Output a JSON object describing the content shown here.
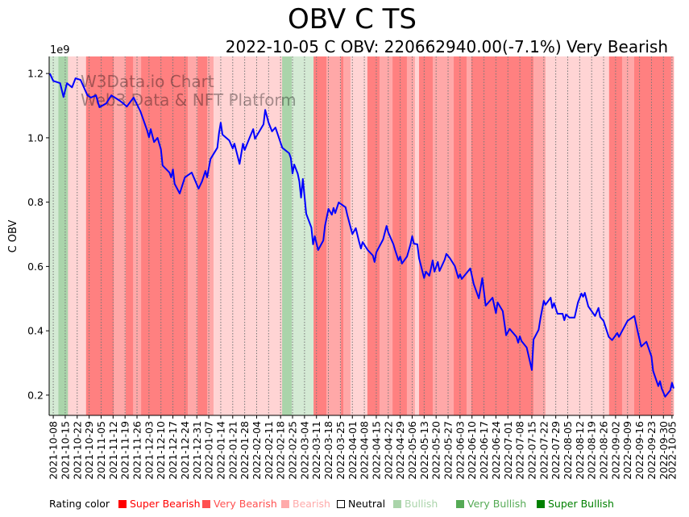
{
  "header": {
    "title": "OBV C TS",
    "subtitle": "2022-10-05 C OBV: 220662940.00(-7.1%) Very Bearish"
  },
  "watermark": [
    "W3Data.io Chart",
    "Web3 Data & NFT Platform"
  ],
  "legend": {
    "label": "Rating color",
    "items": [
      {
        "name": "Super Bearish",
        "color": "#ff0000",
        "text_color": "#ff0000"
      },
      {
        "name": "Very Bearish",
        "color": "#ff5050",
        "text_color": "#ff5050"
      },
      {
        "name": "Bearish",
        "color": "#ffaaaa",
        "text_color": "#ffaaaa"
      },
      {
        "name": "Neutral",
        "color": "#ffffff",
        "text_color": "#000000"
      },
      {
        "name": "Bullish",
        "color": "#aad4aa",
        "text_color": "#aad4aa"
      },
      {
        "name": "Very Bullish",
        "color": "#55aa55",
        "text_color": "#55aa55"
      },
      {
        "name": "Super Bullish",
        "color": "#008000",
        "text_color": "#008000"
      }
    ]
  },
  "chart_data": {
    "type": "line",
    "title": "OBV C TS",
    "xlabel": "",
    "ylabel": "C OBV",
    "y_scale_label": "1e9",
    "x_start_date": "2021-10-08",
    "x_unit": "days since 2021-10-08",
    "xlim": [
      -2.4,
      363
    ],
    "ylim": [
      0.137,
      1.253
    ],
    "y_ticks": [
      0.2,
      0.4,
      0.6,
      0.8,
      1.0,
      1.2
    ],
    "y_tick_labels": [
      "0.2",
      "0.4",
      "0.6",
      "0.8",
      "1.0",
      "1.2"
    ],
    "x_ticks": [
      0,
      7,
      14,
      21,
      28,
      35,
      42,
      49,
      56,
      63,
      70,
      77,
      84,
      91,
      98,
      105,
      112,
      119,
      126,
      133,
      140,
      147,
      154,
      161,
      168,
      175,
      182,
      189,
      196,
      203,
      210,
      217,
      224,
      231,
      238,
      245,
      252,
      259,
      266,
      273,
      280,
      287,
      294,
      301,
      308,
      315,
      322,
      329,
      336,
      343,
      350,
      357,
      362
    ],
    "x_tick_labels": [
      "2021-10-08",
      "2021-10-15",
      "2021-10-22",
      "2021-10-29",
      "2021-11-05",
      "2021-11-12",
      "2021-11-19",
      "2021-11-26",
      "2021-12-03",
      "2021-12-10",
      "2021-12-17",
      "2021-12-24",
      "2021-12-31",
      "2022-01-07",
      "2022-01-14",
      "2022-01-21",
      "2022-01-28",
      "2022-02-04",
      "2022-02-11",
      "2022-02-18",
      "2022-02-25",
      "2022-03-04",
      "2022-03-11",
      "2022-03-18",
      "2022-03-25",
      "2022-04-01",
      "2022-04-08",
      "2022-04-15",
      "2022-04-22",
      "2022-04-29",
      "2022-05-06",
      "2022-05-13",
      "2022-05-20",
      "2022-05-27",
      "2022-06-03",
      "2022-06-10",
      "2022-06-17",
      "2022-06-24",
      "2022-07-01",
      "2022-07-08",
      "2022-07-15",
      "2022-07-22",
      "2022-07-29",
      "2022-08-05",
      "2022-08-12",
      "2022-08-19",
      "2022-08-26",
      "2022-09-02",
      "2022-09-09",
      "2022-09-16",
      "2022-09-23",
      "2022-09-30",
      "2022-10-05"
    ],
    "grid": "vertical dotted at x ticks",
    "line_color": "#0000ff",
    "series": [
      {
        "name": "C OBV",
        "x": [
          -2,
          0,
          4,
          6,
          8,
          11,
          13,
          16,
          20,
          22,
          25,
          27,
          31,
          34,
          39,
          41,
          43,
          47,
          51,
          55,
          56,
          57,
          59,
          61,
          63,
          64,
          68,
          69,
          70,
          71,
          74,
          77,
          81,
          85,
          87,
          89,
          90,
          92,
          96,
          97,
          98,
          99,
          103,
          105,
          106,
          109,
          111,
          112,
          115,
          117,
          118,
          123,
          124,
          126,
          128,
          130,
          134,
          138,
          139,
          140,
          141,
          143,
          144,
          145,
          146,
          148,
          151,
          152,
          153,
          155,
          158,
          159,
          161,
          163,
          164,
          165,
          167,
          171,
          172,
          174,
          175,
          177,
          179,
          180,
          181,
          184,
          187,
          188,
          189,
          193,
          195,
          196,
          199,
          200,
          202,
          203,
          204,
          207,
          209,
          210,
          211,
          213,
          214,
          217,
          218,
          220,
          221,
          222,
          223,
          225,
          226,
          229,
          230,
          232,
          235,
          237,
          238,
          239,
          242,
          244,
          246,
          249,
          251,
          253,
          257,
          259,
          260,
          263,
          265,
          267,
          271,
          272,
          273,
          274,
          277,
          280,
          281,
          284,
          285,
          287,
          288,
          291,
          292,
          293,
          295,
          298,
          299,
          300,
          302,
          305,
          307,
          309,
          310,
          311,
          313,
          317,
          319,
          320,
          322,
          325,
          327,
          330,
          331,
          334,
          336,
          340,
          342,
          344,
          347,
          350,
          351,
          354,
          355,
          356,
          358,
          361,
          362,
          363
        ],
        "y": [
          1.2,
          1.177,
          1.17,
          1.127,
          1.17,
          1.157,
          1.185,
          1.18,
          1.132,
          1.125,
          1.132,
          1.095,
          1.107,
          1.132,
          1.115,
          1.107,
          1.097,
          1.125,
          1.082,
          1.022,
          1.002,
          1.027,
          0.987,
          1.0,
          0.964,
          0.914,
          0.892,
          0.877,
          0.902,
          0.857,
          0.827,
          0.877,
          0.892,
          0.842,
          0.864,
          0.897,
          0.877,
          0.934,
          0.969,
          1.015,
          1.047,
          1.01,
          0.992,
          0.967,
          0.982,
          0.919,
          0.982,
          0.962,
          1.002,
          1.027,
          0.997,
          1.042,
          1.087,
          1.047,
          1.02,
          1.032,
          0.969,
          0.952,
          0.937,
          0.889,
          0.917,
          0.889,
          0.864,
          0.814,
          0.872,
          0.764,
          0.721,
          0.669,
          0.694,
          0.651,
          0.681,
          0.726,
          0.779,
          0.761,
          0.782,
          0.766,
          0.799,
          0.784,
          0.761,
          0.721,
          0.701,
          0.719,
          0.676,
          0.656,
          0.676,
          0.651,
          0.634,
          0.614,
          0.644,
          0.684,
          0.726,
          0.706,
          0.669,
          0.651,
          0.619,
          0.631,
          0.609,
          0.631,
          0.669,
          0.694,
          0.671,
          0.669,
          0.626,
          0.564,
          0.584,
          0.571,
          0.594,
          0.619,
          0.584,
          0.614,
          0.586,
          0.621,
          0.639,
          0.626,
          0.601,
          0.564,
          0.576,
          0.561,
          0.581,
          0.594,
          0.546,
          0.501,
          0.564,
          0.478,
          0.503,
          0.455,
          0.488,
          0.461,
          0.386,
          0.406,
          0.381,
          0.363,
          0.383,
          0.368,
          0.348,
          0.278,
          0.373,
          0.403,
          0.438,
          0.493,
          0.481,
          0.503,
          0.471,
          0.486,
          0.453,
          0.453,
          0.433,
          0.451,
          0.441,
          0.441,
          0.488,
          0.516,
          0.506,
          0.518,
          0.476,
          0.446,
          0.471,
          0.443,
          0.431,
          0.381,
          0.371,
          0.393,
          0.381,
          0.411,
          0.431,
          0.446,
          0.396,
          0.351,
          0.366,
          0.32,
          0.275,
          0.228,
          0.243,
          0.22,
          0.195,
          0.215,
          0.238,
          0.2207
        ]
      }
    ],
    "rating_bands": [
      {
        "from": -2.4,
        "to": 3,
        "rating": "Bullish"
      },
      {
        "from": 3,
        "to": 8.6,
        "rating": "Very Bullish"
      },
      {
        "from": 8.6,
        "to": 19.2,
        "rating": "Bearish"
      },
      {
        "from": 19.2,
        "to": 35.4,
        "rating": "Super Bearish"
      },
      {
        "from": 35.4,
        "to": 42.4,
        "rating": "Very Bearish"
      },
      {
        "from": 42.4,
        "to": 46.7,
        "rating": "Super Bearish"
      },
      {
        "from": 46.7,
        "to": 51.4,
        "rating": "Very Bearish"
      },
      {
        "from": 51.4,
        "to": 78.7,
        "rating": "Super Bearish"
      },
      {
        "from": 78.7,
        "to": 84.4,
        "rating": "Very Bearish"
      },
      {
        "from": 84.4,
        "to": 90,
        "rating": "Super Bearish"
      },
      {
        "from": 90,
        "to": 93.8,
        "rating": "Very Bearish"
      },
      {
        "from": 93.8,
        "to": 133.9,
        "rating": "Bearish"
      },
      {
        "from": 133.9,
        "to": 139.5,
        "rating": "Very Bullish"
      },
      {
        "from": 139.5,
        "to": 152.3,
        "rating": "Bullish"
      },
      {
        "from": 152.3,
        "to": 159.8,
        "rating": "Super Bearish"
      },
      {
        "from": 159.8,
        "to": 168.3,
        "rating": "Very Bearish"
      },
      {
        "from": 168.3,
        "to": 169.7,
        "rating": "Super Bearish"
      },
      {
        "from": 169.7,
        "to": 173.9,
        "rating": "Very Bearish"
      },
      {
        "from": 173.9,
        "to": 183.8,
        "rating": "Bearish"
      },
      {
        "from": 183.8,
        "to": 190.9,
        "rating": "Super Bearish"
      },
      {
        "from": 190.9,
        "to": 198.5,
        "rating": "Very Bearish"
      },
      {
        "from": 198.5,
        "to": 206.9,
        "rating": "Super Bearish"
      },
      {
        "from": 206.9,
        "to": 211.6,
        "rating": "Very Bearish"
      },
      {
        "from": 211.6,
        "to": 214,
        "rating": "Bearish"
      },
      {
        "from": 214,
        "to": 222,
        "rating": "Super Bearish"
      },
      {
        "from": 222,
        "to": 234.3,
        "rating": "Very Bearish"
      },
      {
        "from": 234.3,
        "to": 241.8,
        "rating": "Super Bearish"
      },
      {
        "from": 241.8,
        "to": 244.6,
        "rating": "Very Bearish"
      },
      {
        "from": 244.6,
        "to": 280.9,
        "rating": "Super Bearish"
      },
      {
        "from": 280.9,
        "to": 288,
        "rating": "Very Bearish"
      },
      {
        "from": 288,
        "to": 325.2,
        "rating": "Bearish"
      },
      {
        "from": 325.2,
        "to": 332.8,
        "rating": "Super Bearish"
      },
      {
        "from": 332.8,
        "to": 339.9,
        "rating": "Very Bearish"
      },
      {
        "from": 339.9,
        "to": 361.5,
        "rating": "Super Bearish"
      },
      {
        "from": 361.5,
        "to": 363,
        "rating": "Very Bearish"
      }
    ],
    "band_colors": {
      "Super Bearish": "#ff8080",
      "Very Bearish": "#ffa8a8",
      "Bearish": "#ffd4d4",
      "Neutral": "#ffffff",
      "Bullish": "#d4ead4",
      "Very Bullish": "#aad4aa",
      "Super Bullish": "#80c080"
    }
  }
}
